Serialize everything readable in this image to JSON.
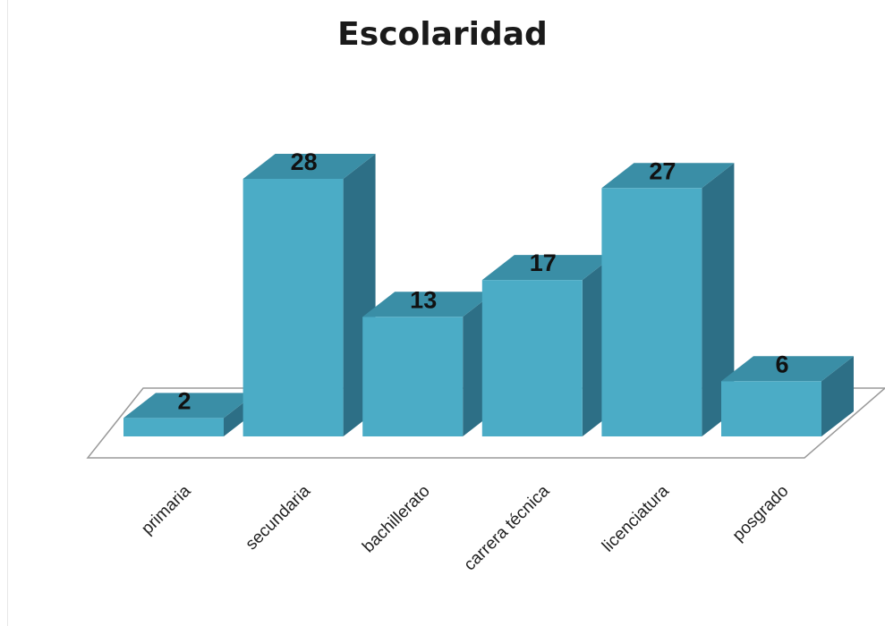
{
  "chart_data": {
    "type": "bar",
    "title": "Escolaridad",
    "categories": [
      "primaria",
      "secundaria",
      "bachillerato",
      "carrera técnica",
      "licenciatura",
      "posgrado"
    ],
    "values": [
      2,
      28,
      13,
      17,
      27,
      6
    ],
    "xlabel": "",
    "ylabel": "",
    "ylim": [
      0,
      28
    ],
    "grid": false,
    "legend": "none",
    "style": "3d",
    "colors": {
      "front": "#4bacc6",
      "top": "#3a8ea6",
      "side": "#2d6f86",
      "floor_edge": "#9a9a9a"
    }
  }
}
